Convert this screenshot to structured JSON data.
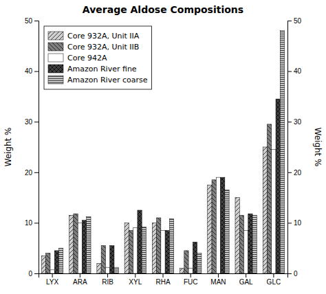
{
  "chart_data": {
    "type": "bar",
    "title": "Average Aldose Compositions",
    "categories": [
      "LYX",
      "ARA",
      "RIB",
      "XYL",
      "RHA",
      "FUC",
      "MAN",
      "GAL",
      "GLC"
    ],
    "series": [
      {
        "name": "Core 932A, Unit IIA",
        "color": "#d0d0d0",
        "values": [
          3.5,
          11.5,
          2.0,
          10.0,
          10.0,
          1.0,
          17.5,
          15.0,
          25.0
        ]
      },
      {
        "name": "Core 932A, Unit IIB",
        "color": "#808080",
        "values": [
          4.0,
          11.8,
          5.5,
          8.5,
          11.0,
          4.5,
          18.5,
          11.5,
          29.5
        ]
      },
      {
        "name": "Core 942A",
        "color": "#ffffff",
        "values": [
          0.7,
          10.0,
          1.2,
          9.0,
          8.5,
          1.0,
          19.0,
          8.5,
          24.5
        ]
      },
      {
        "name": "Amazon River fine",
        "color": "#404040",
        "values": [
          4.5,
          10.5,
          5.5,
          12.5,
          8.5,
          6.2,
          19.0,
          11.8,
          34.5
        ]
      },
      {
        "name": "Amazon River coarse",
        "color": "#c8c8c8",
        "values": [
          5.0,
          11.2,
          1.2,
          9.2,
          10.8,
          4.0,
          16.5,
          11.5,
          48.0
        ]
      }
    ],
    "ylabel": "Weight %",
    "ylim": [
      0,
      50
    ],
    "yticks": [
      0,
      10,
      20,
      30,
      40,
      50
    ],
    "legend": "upper left",
    "grid": false
  }
}
